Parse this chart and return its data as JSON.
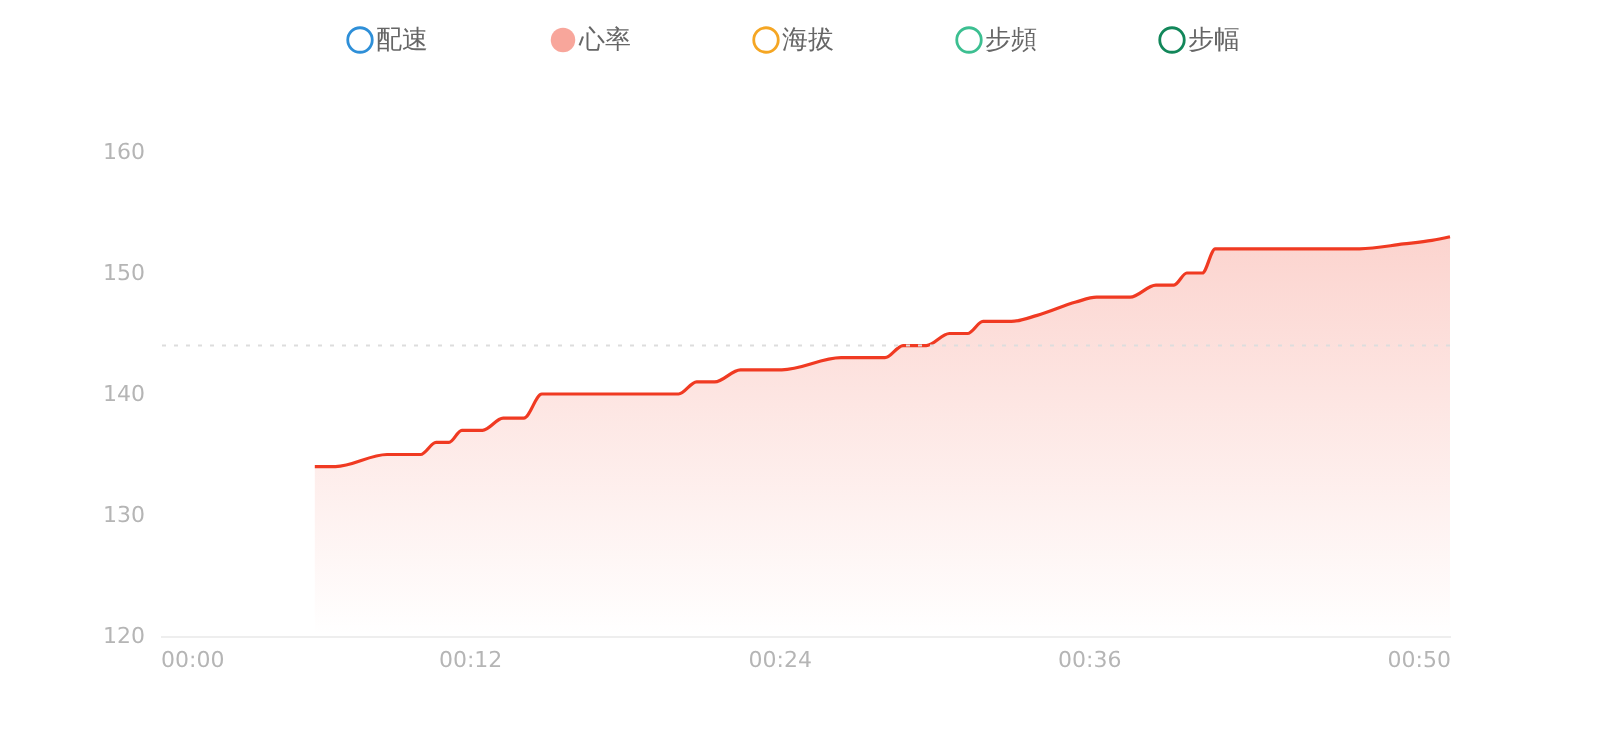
{
  "chart_data": {
    "type": "area",
    "legend": "top",
    "grid": false,
    "line_style": "solid",
    "marker": "none",
    "xlim": [
      0,
      50
    ],
    "xticks": [
      {
        "value": 0,
        "label": "00:00"
      },
      {
        "value": 12,
        "label": "00:12"
      },
      {
        "value": 24,
        "label": "00:24"
      },
      {
        "value": 36,
        "label": "00:36"
      },
      {
        "value": 50,
        "label": "00:50"
      }
    ],
    "ylim": [
      120,
      160
    ],
    "yticks": [
      120,
      130,
      140,
      150,
      160
    ],
    "ref_lines": [
      {
        "axis": "y",
        "value": 144,
        "color": "#dddddd",
        "line_style": "dotted"
      }
    ],
    "series": [
      {
        "name": "配速",
        "color": "#2e8fd8"
      },
      {
        "name": "心率",
        "color": "#f03a22",
        "x": [
          6,
          6.8,
          8.8,
          10.1,
          10.7,
          11.2,
          11.7,
          12.5,
          13.3,
          14.1,
          14.8,
          20.1,
          20.8,
          21.5,
          22.5,
          24.1,
          26.4,
          27.6,
          28.1,
          28.8,
          29.7,
          30.6,
          31.3,
          31.9,
          33,
          34,
          35.5,
          36.3,
          37.6,
          38.6,
          39.3,
          39.8,
          40.4,
          40.9,
          46.5,
          48.2,
          49.3,
          50
        ],
        "values": [
          134,
          134,
          135,
          135,
          136,
          136,
          137,
          137,
          138,
          138,
          140,
          140,
          141,
          141,
          142,
          142,
          143,
          143,
          143,
          144,
          144,
          145,
          145,
          146,
          146,
          146.5,
          147.6,
          148,
          148,
          149,
          149,
          150,
          150,
          152,
          152,
          152.4,
          152.7,
          153
        ]
      },
      {
        "name": "海拔",
        "color": "#f5a623"
      },
      {
        "name": "步頻",
        "color": "#3cbf91"
      },
      {
        "name": "步幅",
        "color": "#12875a"
      }
    ]
  }
}
